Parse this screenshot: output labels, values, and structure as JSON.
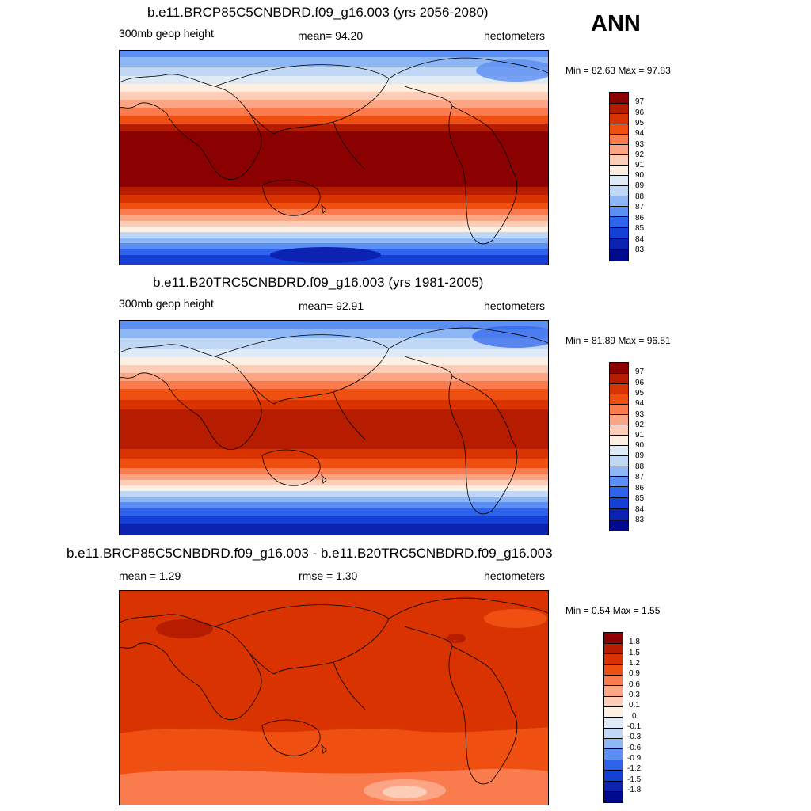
{
  "season": "ANN",
  "panels": [
    {
      "title": "b.e11.BRCP85C5CNBDRD.f09_g16.003 (yrs 2056-2080)",
      "left_label": "300mb geop height",
      "center_label": "mean=  94.20",
      "right_label": "hectometers",
      "minmax": "Min =  82.63 Max =  97.83",
      "legend_labels": [
        "97",
        "96",
        "95",
        "94",
        "93",
        "92",
        "91",
        "90",
        "89",
        "88",
        "87",
        "86",
        "85",
        "84",
        "83"
      ]
    },
    {
      "title": "b.e11.B20TRC5CNBDRD.f09_g16.003 (yrs 1981-2005)",
      "left_label": "300mb geop height",
      "center_label": "mean=  92.91",
      "right_label": "hectometers",
      "minmax": "Min =  81.89 Max =  96.51",
      "legend_labels": [
        "97",
        "96",
        "95",
        "94",
        "93",
        "92",
        "91",
        "90",
        "89",
        "88",
        "87",
        "86",
        "85",
        "84",
        "83"
      ]
    },
    {
      "title": "b.e11.BRCP85C5CNBDRD.f09_g16.003 - b.e11.B20TRC5CNBDRD.f09_g16.003",
      "left_label": "mean =   1.29",
      "center_label": "rmse =   1.30",
      "right_label": "hectometers",
      "minmax": "Min =   0.54 Max =   1.55",
      "legend_labels": [
        "1.8",
        "1.5",
        "1.2",
        "0.9",
        "0.6",
        "0.3",
        "0.1",
        "0",
        "-0.1",
        "-0.3",
        "-0.6",
        "-0.9",
        "-1.2",
        "-1.5",
        "-1.8"
      ]
    }
  ],
  "colors": {
    "abs_scale": [
      "#8b0000",
      "#b51c00",
      "#d83300",
      "#ef4f10",
      "#fa7c4e",
      "#fca585",
      "#fdcdb8",
      "#fdf0e3",
      "#deebf7",
      "#c0d8f6",
      "#8db6f5",
      "#5b8ff3",
      "#2e63ec",
      "#1540d6",
      "#0b23b0",
      "#000a8c"
    ],
    "diff_scale": [
      "#8b0000",
      "#b51c00",
      "#d83300",
      "#ef4f10",
      "#fa7c4e",
      "#fca585",
      "#fdcdb8",
      "#fdf0e3",
      "#deebf7",
      "#c0d8f6",
      "#8db6f5",
      "#5b8ff3",
      "#2e63ec",
      "#1540d6",
      "#0b23b0",
      "#000a8c"
    ]
  }
}
